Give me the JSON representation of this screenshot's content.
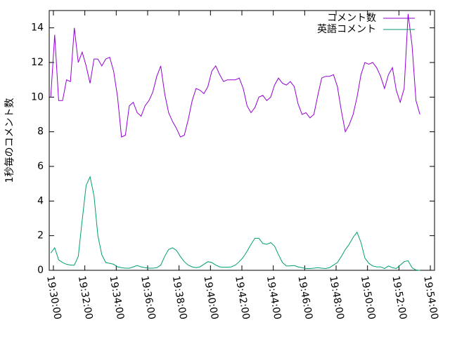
{
  "chart_data": {
    "type": "line",
    "ylabel": "1秒毎のコメント数",
    "x": [
      "19:29:50",
      "19:30:05",
      "19:30:20",
      "19:30:35",
      "19:30:50",
      "19:31:05",
      "19:31:20",
      "19:31:35",
      "19:31:50",
      "19:32:05",
      "19:32:20",
      "19:32:35",
      "19:32:50",
      "19:33:05",
      "19:33:20",
      "19:33:35",
      "19:33:50",
      "19:34:05",
      "19:34:20",
      "19:34:35",
      "19:34:50",
      "19:35:05",
      "19:35:20",
      "19:35:35",
      "19:35:50",
      "19:36:05",
      "19:36:20",
      "19:36:35",
      "19:36:50",
      "19:37:05",
      "19:37:20",
      "19:37:35",
      "19:37:50",
      "19:38:05",
      "19:38:20",
      "19:38:35",
      "19:38:50",
      "19:39:05",
      "19:39:20",
      "19:39:35",
      "19:39:50",
      "19:40:05",
      "19:40:20",
      "19:40:35",
      "19:40:50",
      "19:41:05",
      "19:41:20",
      "19:41:35",
      "19:41:50",
      "19:42:05",
      "19:42:20",
      "19:42:35",
      "19:42:50",
      "19:43:05",
      "19:43:20",
      "19:43:35",
      "19:43:50",
      "19:44:05",
      "19:44:20",
      "19:44:35",
      "19:44:50",
      "19:45:05",
      "19:45:20",
      "19:45:35",
      "19:45:50",
      "19:46:05",
      "19:46:20",
      "19:46:35",
      "19:46:50",
      "19:47:05",
      "19:47:20",
      "19:47:35",
      "19:47:50",
      "19:48:05",
      "19:48:20",
      "19:48:35",
      "19:48:50",
      "19:49:05",
      "19:49:20",
      "19:49:35",
      "19:49:50",
      "19:50:05",
      "19:50:20",
      "19:50:35",
      "19:50:50",
      "19:51:05",
      "19:51:20",
      "19:51:35",
      "19:51:50",
      "19:52:05",
      "19:52:20",
      "19:52:35",
      "19:52:50",
      "19:53:05",
      "19:53:20"
    ],
    "series": [
      {
        "name": "コメント数",
        "color": "#9400d3",
        "values": [
          10,
          13.6,
          9.8,
          9.8,
          11,
          10.9,
          14,
          12,
          12.6,
          11.8,
          10.8,
          12.2,
          12.2,
          11.8,
          12.2,
          12.3,
          11.5,
          10,
          7.7,
          7.8,
          9.5,
          9.7,
          9.1,
          8.9,
          9.5,
          9.8,
          10.3,
          11.2,
          11.8,
          10.2,
          9.1,
          8.6,
          8.2,
          7.7,
          7.8,
          8.7,
          9.8,
          10.5,
          10.4,
          10.2,
          10.6,
          11.5,
          11.8,
          11.3,
          10.9,
          11,
          11,
          11,
          11.1,
          10.5,
          9.5,
          9.1,
          9.4,
          10,
          10.1,
          9.8,
          10,
          10.7,
          11.1,
          10.8,
          10.7,
          10.9,
          10.6,
          9.6,
          9,
          9.1,
          8.8,
          9,
          10.1,
          11.1,
          11.2,
          11.2,
          11.3,
          10.6,
          9.2,
          8,
          8.4,
          9,
          10,
          11.3,
          12,
          11.9,
          12,
          11.7,
          11.2,
          10.5,
          11.3,
          11.7,
          10.4,
          9.7,
          10.5,
          14.8,
          13,
          9.8,
          9
        ]
      },
      {
        "name": "英語コメント",
        "color": "#009e73",
        "values": [
          1.0,
          1.3,
          0.6,
          0.45,
          0.35,
          0.3,
          0.3,
          0.8,
          2.9,
          4.9,
          5.4,
          4.3,
          2.0,
          0.9,
          0.45,
          0.4,
          0.35,
          0.2,
          0.15,
          0.12,
          0.12,
          0.2,
          0.28,
          0.2,
          0.15,
          0.12,
          0.12,
          0.15,
          0.3,
          0.8,
          1.2,
          1.3,
          1.15,
          0.8,
          0.5,
          0.3,
          0.2,
          0.15,
          0.2,
          0.35,
          0.5,
          0.45,
          0.3,
          0.2,
          0.18,
          0.18,
          0.2,
          0.3,
          0.5,
          0.75,
          1.1,
          1.5,
          1.85,
          1.85,
          1.55,
          1.5,
          1.6,
          1.4,
          0.9,
          0.45,
          0.25,
          0.25,
          0.28,
          0.2,
          0.15,
          0.1,
          0.1,
          0.12,
          0.15,
          0.12,
          0.1,
          0.15,
          0.3,
          0.45,
          0.8,
          1.2,
          1.5,
          1.9,
          2.2,
          1.6,
          0.7,
          0.4,
          0.25,
          0.2,
          0.2,
          0.1,
          0.25,
          0.15,
          0.1,
          0.3,
          0.5,
          0.55,
          0.15,
          0.02,
          0
        ]
      }
    ],
    "xlim": [
      "19:29:44",
      "19:54:16"
    ],
    "xticks": [
      "19:30:00",
      "19:32:00",
      "19:34:00",
      "19:36:00",
      "19:38:00",
      "19:40:00",
      "19:42:00",
      "19:44:00",
      "19:46:00",
      "19:48:00",
      "19:50:00",
      "19:52:00",
      "19:54:00"
    ],
    "ylim": [
      0,
      15
    ],
    "yticks": [
      0,
      2,
      4,
      6,
      8,
      10,
      12,
      14
    ],
    "legend": "top-right"
  }
}
